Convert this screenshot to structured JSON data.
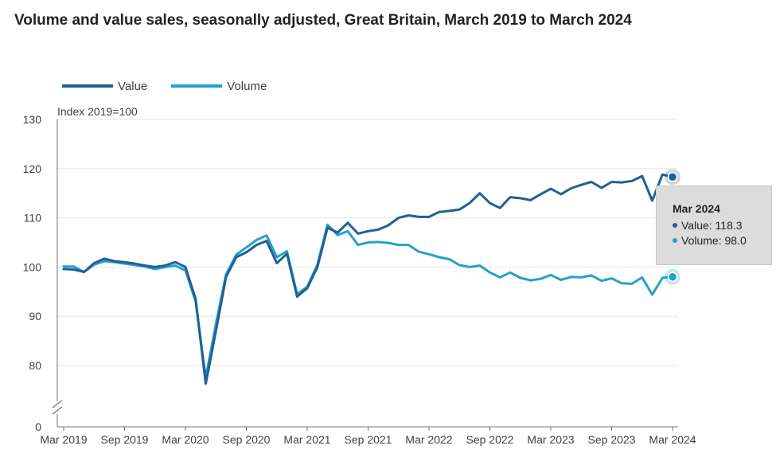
{
  "title": "Volume and value sales, seasonally adjusted, Great Britain, March 2019 to March 2024",
  "colors": {
    "value": "#206095",
    "volume": "#27a0cc",
    "grid": "#e6e6e6",
    "axis": "#707070"
  },
  "tooltip": {
    "title": "Mar 2024",
    "value_row": "Value: 118.3",
    "volume_row": "Volume: 98.0"
  },
  "chart_data": {
    "type": "line",
    "ylabel": "Index 2019=100",
    "y_ticks": [
      "130",
      "120",
      "110",
      "100",
      "90",
      "80",
      "0"
    ],
    "axis_break": true,
    "x_tick_labels": [
      "Mar 2019",
      "Sep 2019",
      "Mar 2020",
      "Sep 2020",
      "Mar 2021",
      "Sep 2021",
      "Mar 2022",
      "Sep 2022",
      "Mar 2023",
      "Sep 2023",
      "Mar 2024"
    ],
    "x_start": "Mar 2019",
    "x_end": "Mar 2024",
    "grid": true,
    "legend_position": "top-left",
    "series": [
      {
        "name": "Value",
        "values": [
          99.6,
          99.5,
          99.0,
          100.8,
          101.7,
          101.2,
          101.0,
          100.7,
          100.3,
          100.0,
          100.3,
          101.0,
          100.0,
          93.5,
          76.3,
          87.0,
          98.0,
          102.0,
          103.0,
          104.5,
          105.3,
          100.8,
          102.7,
          94.0,
          95.7,
          100.0,
          108.0,
          107.0,
          109.0,
          106.8,
          107.3,
          107.6,
          108.5,
          110.0,
          110.5,
          110.2,
          110.2,
          111.2,
          111.4,
          111.7,
          113.0,
          115.0,
          113.0,
          112.0,
          114.2,
          114.0,
          113.6,
          114.8,
          115.9,
          114.8,
          116.0,
          116.7,
          117.3,
          116.1,
          117.3,
          117.2,
          117.5,
          118.5,
          113.5,
          118.8,
          118.3
        ]
      },
      {
        "name": "Volume",
        "values": [
          100.1,
          100.1,
          99.0,
          100.5,
          101.2,
          101.0,
          100.7,
          100.4,
          100.1,
          99.6,
          100.0,
          100.3,
          99.3,
          93.0,
          77.5,
          88.5,
          98.5,
          102.5,
          104.0,
          105.5,
          106.4,
          102.0,
          103.2,
          94.5,
          96.0,
          100.5,
          108.6,
          106.5,
          107.3,
          104.5,
          105.0,
          105.1,
          104.9,
          104.5,
          104.5,
          103.1,
          102.6,
          102.0,
          101.6,
          100.4,
          100.0,
          100.3,
          98.9,
          97.9,
          98.9,
          97.8,
          97.3,
          97.6,
          98.4,
          97.4,
          98.0,
          97.9,
          98.3,
          97.2,
          97.7,
          96.7,
          96.6,
          97.9,
          94.4,
          97.8,
          98.0
        ]
      }
    ]
  }
}
